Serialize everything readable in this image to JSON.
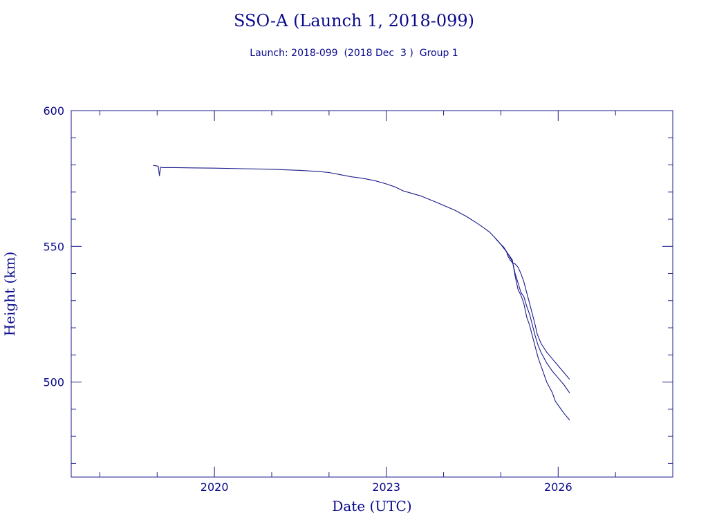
{
  "chart_data": {
    "type": "line",
    "title": "SSO-A (Launch 1, 2018-099)",
    "subtitle": "Launch: 2018-099  (2018 Dec  3 )  Group 1",
    "xlabel": "Date (UTC)",
    "ylabel": "Height (km)",
    "xlim": [
      2017.5,
      2028.0
    ],
    "ylim": [
      465,
      600
    ],
    "x_major_ticks": [
      2020,
      2023,
      2026
    ],
    "x_tick_labels": [
      "2020",
      "2023",
      "2026"
    ],
    "x_minor_ticks": [
      2018,
      2019,
      2021,
      2022,
      2024,
      2025,
      2027
    ],
    "y_major_ticks": [
      500,
      550,
      600
    ],
    "y_tick_labels": [
      "500",
      "550",
      "600"
    ],
    "y_minor_ticks": [
      470,
      480,
      490,
      510,
      520,
      530,
      540,
      560,
      570,
      580,
      590
    ],
    "grid": false,
    "colors": {
      "foreground": "#0a0a8c",
      "line": "#1a1a8c",
      "background": "#ffffff"
    },
    "series": [
      {
        "x": [
          2018.93,
          2018.97,
          2019.0,
          2019.02,
          2019.04,
          2019.06,
          2019.08,
          2019.1,
          2019.3,
          2019.6,
          2020.0,
          2020.5,
          2021.0,
          2021.5,
          2021.8,
          2022.0,
          2022.2,
          2022.4,
          2022.6,
          2022.8,
          2023.0,
          2023.15,
          2023.3,
          2023.6,
          2023.9,
          2024.2,
          2024.4,
          2024.6,
          2024.7,
          2024.8,
          2024.9,
          2025.0,
          2025.05,
          2025.1,
          2025.12,
          2025.16,
          2025.2,
          2025.25,
          2025.3,
          2025.35,
          2025.4,
          2025.45,
          2025.5,
          2025.55,
          2025.6,
          2025.63,
          2025.7,
          2025.8,
          2025.9,
          2026.0,
          2026.1,
          2026.2
        ],
        "values": [
          579.8,
          579.7,
          579.6,
          579.5,
          576.0,
          579.2,
          579.1,
          579.0,
          579.0,
          578.9,
          578.8,
          578.6,
          578.4,
          578.0,
          577.6,
          577.2,
          576.4,
          575.6,
          575.0,
          574.2,
          573.0,
          571.9,
          570.4,
          568.6,
          566.0,
          563.3,
          561.0,
          558.3,
          556.8,
          555.3,
          553.1,
          550.7,
          549.7,
          548.0,
          546.5,
          545.0,
          544.0,
          543.5,
          542.3,
          540.0,
          537.0,
          533.0,
          529.0,
          525.0,
          521.0,
          518.0,
          514.3,
          511.0,
          508.5,
          506.0,
          503.5,
          501.0
        ]
      },
      {
        "x": [
          2024.9,
          2025.0,
          2025.1,
          2025.2,
          2025.25,
          2025.3,
          2025.35,
          2025.4,
          2025.45,
          2025.5,
          2025.55,
          2025.6,
          2025.65,
          2025.7,
          2025.8,
          2025.9,
          2026.0,
          2026.1,
          2026.2
        ],
        "values": [
          553.1,
          550.7,
          548.0,
          544.5,
          540.0,
          536.5,
          533.0,
          531.5,
          528.0,
          525.0,
          521.0,
          517.0,
          513.5,
          511.0,
          507.0,
          504.0,
          501.5,
          499.0,
          496.0
        ]
      },
      {
        "x": [
          2024.9,
          2025.0,
          2025.1,
          2025.2,
          2025.25,
          2025.3,
          2025.35,
          2025.4,
          2025.45,
          2025.5,
          2025.55,
          2025.6,
          2025.65,
          2025.7,
          2025.75,
          2025.8,
          2025.85,
          2025.9,
          2025.95,
          2026.0,
          2026.1,
          2026.2
        ],
        "values": [
          553.1,
          550.7,
          548.0,
          545.0,
          539.0,
          534.0,
          532.0,
          529.0,
          524.0,
          521.0,
          517.0,
          513.0,
          509.0,
          506.0,
          503.0,
          500.0,
          498.0,
          496.0,
          493.0,
          491.5,
          488.5,
          486.0
        ]
      }
    ]
  }
}
